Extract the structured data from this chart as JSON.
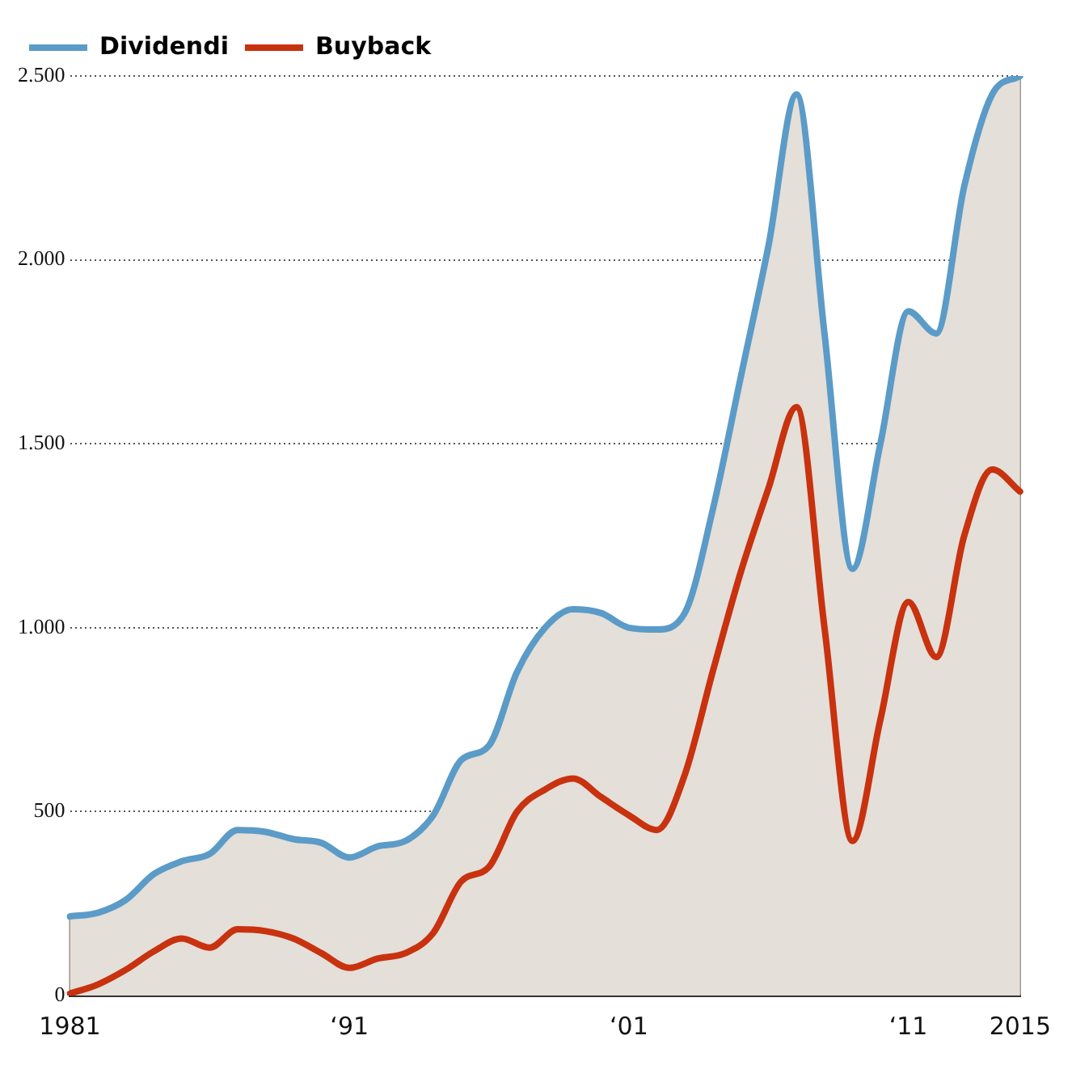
{
  "chart_data": {
    "type": "line",
    "categories": [
      "1981",
      null,
      null,
      null,
      null,
      null,
      null,
      null,
      null,
      null,
      "‘91",
      null,
      null,
      null,
      null,
      null,
      null,
      null,
      null,
      null,
      "‘01",
      null,
      null,
      null,
      null,
      null,
      null,
      null,
      null,
      null,
      "‘11",
      null,
      null,
      null,
      "2015"
    ],
    "series": [
      {
        "name": "Dividendi",
        "type": "area",
        "color": "#5b9bc8",
        "values": [
          215,
          225,
          260,
          330,
          365,
          385,
          450,
          445,
          425,
          415,
          375,
          405,
          420,
          490,
          640,
          680,
          880,
          1000,
          1050,
          1040,
          1000,
          995,
          1040,
          1320,
          1680,
          2040,
          2450,
          1800,
          1160,
          1500,
          1860,
          1800,
          2200,
          2450,
          2500
        ]
      },
      {
        "name": "Buyback",
        "type": "line",
        "color": "#c8320f",
        "values": [
          5,
          30,
          70,
          120,
          155,
          130,
          180,
          175,
          155,
          115,
          75,
          100,
          115,
          170,
          310,
          350,
          500,
          560,
          590,
          540,
          490,
          450,
          600,
          880,
          1150,
          1380,
          1600,
          1000,
          420,
          750,
          1070,
          920,
          1250,
          1430,
          1370
        ]
      }
    ],
    "ylim": [
      0,
      2500
    ],
    "yticks": [
      0,
      500,
      {
        "value": 1000,
        "label": "1.000"
      },
      {
        "value": 1500,
        "label": "1.500"
      },
      {
        "value": 2000,
        "label": "2.000"
      },
      {
        "value": 2500,
        "label": "2.500"
      }
    ],
    "grid": true,
    "legend": "top left",
    "line_style": "solid"
  }
}
